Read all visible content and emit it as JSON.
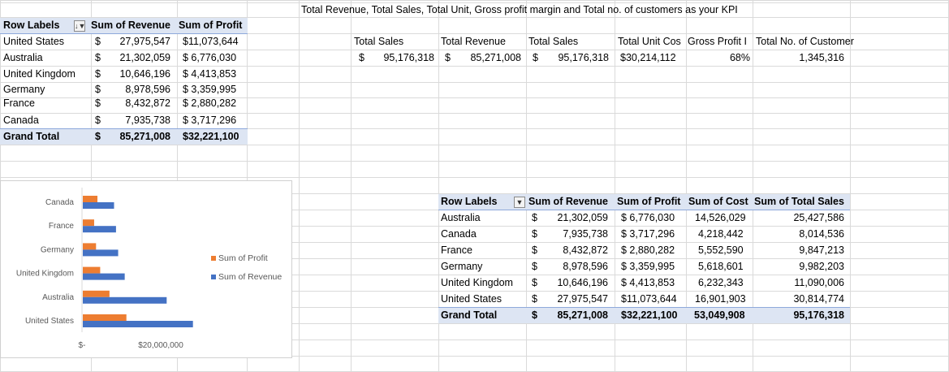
{
  "kpi_title": "Total Revenue, Total Sales, Total Unit, Gross profit margin and Total no. of customers  as your KPI",
  "colors": {
    "profit": "#ed7d31",
    "revenue": "#4472c4",
    "header_band": "#dde5f3"
  },
  "pivot1": {
    "headers": [
      "Row Labels",
      "Sum of Revenue",
      "Sum of Profit"
    ],
    "filter_icon": "sort-filter-icon",
    "rows": [
      {
        "label": "United States",
        "cur": "$",
        "revenue": "27,975,547",
        "profit": "$11,073,644"
      },
      {
        "label": "Australia",
        "cur": "$",
        "revenue": "21,302,059",
        "profit": "$ 6,776,030"
      },
      {
        "label": "United Kingdom",
        "cur": "$",
        "revenue": "10,646,196",
        "profit": "$ 4,413,853"
      },
      {
        "label": "Germany",
        "cur": "$",
        "revenue": "8,978,596",
        "profit": "$ 3,359,995"
      },
      {
        "label": "France",
        "cur": "$",
        "revenue": "8,432,872",
        "profit": "$ 2,880,282"
      },
      {
        "label": "Canada",
        "cur": "$",
        "revenue": "7,935,738",
        "profit": "$ 3,717,296"
      }
    ],
    "total": {
      "label": "Grand Total",
      "cur": "$",
      "revenue": "85,271,008",
      "profit": "$32,221,100"
    }
  },
  "kpi": {
    "headers": [
      "Total Sales",
      "Total Revenue",
      "Total Sales",
      "Total Unit Cos",
      "Gross Profit I",
      "Total No. of Customer"
    ],
    "values": {
      "cur1": "$",
      "total_sales_1": "95,176,318",
      "cur2": "$",
      "total_revenue": "85,271,008",
      "cur3": "$",
      "total_sales_2": "95,176,318",
      "total_unit_cost": "$30,214,112",
      "gross_profit": "68%",
      "customers": "1,345,316"
    }
  },
  "pivot2": {
    "headers": [
      "Row Labels",
      "Sum of Revenue",
      "Sum of Profit",
      "Sum of Cost",
      "Sum of Total Sales"
    ],
    "filter_icon": "filter-icon",
    "rows": [
      {
        "label": "Australia",
        "cur": "$",
        "revenue": "21,302,059",
        "profit": "$ 6,776,030",
        "cost": "14,526,029",
        "sales": "25,427,586"
      },
      {
        "label": "Canada",
        "cur": "$",
        "revenue": "7,935,738",
        "profit": "$ 3,717,296",
        "cost": "4,218,442",
        "sales": "8,014,536"
      },
      {
        "label": "France",
        "cur": "$",
        "revenue": "8,432,872",
        "profit": "$ 2,880,282",
        "cost": "5,552,590",
        "sales": "9,847,213"
      },
      {
        "label": "Germany",
        "cur": "$",
        "revenue": "8,978,596",
        "profit": "$ 3,359,995",
        "cost": "5,618,601",
        "sales": "9,982,203"
      },
      {
        "label": "United Kingdom",
        "cur": "$",
        "revenue": "10,646,196",
        "profit": "$ 4,413,853",
        "cost": "6,232,343",
        "sales": "11,090,006"
      },
      {
        "label": "United States",
        "cur": "$",
        "revenue": "27,975,547",
        "profit": "$11,073,644",
        "cost": "16,901,903",
        "sales": "30,814,774"
      }
    ],
    "total": {
      "label": "Grand Total",
      "cur": "$",
      "revenue": "85,271,008",
      "profit": "$32,221,100",
      "cost": "53,049,908",
      "sales": "95,176,318"
    }
  },
  "chart_data": {
    "type": "bar",
    "orientation": "horizontal",
    "categories": [
      "Canada",
      "France",
      "Germany",
      "United Kingdom",
      "Australia",
      "United States"
    ],
    "series": [
      {
        "name": "Sum of Profit",
        "values": [
          3717296,
          2880282,
          3359995,
          4413853,
          6776030,
          11073644
        ]
      },
      {
        "name": "Sum of Revenue",
        "values": [
          7935738,
          8432872,
          8978596,
          10646196,
          21302059,
          27975547
        ]
      }
    ],
    "x_tick_labels": [
      "$-",
      "$20,000,000"
    ],
    "xlim": [
      0,
      40000000
    ],
    "legend_position": "right",
    "grid": false
  }
}
